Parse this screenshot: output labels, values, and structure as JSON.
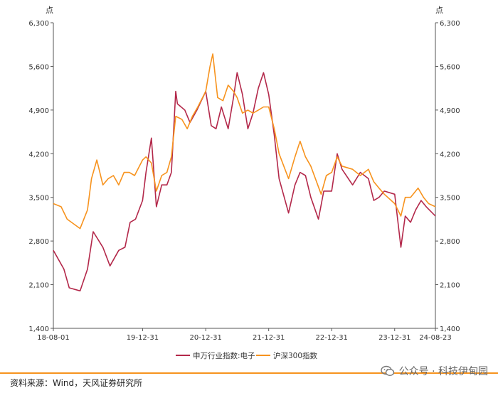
{
  "chart_data": {
    "type": "line",
    "unit_left": "点",
    "unit_right": "点",
    "ylim": [
      1400,
      6300
    ],
    "yticks": [
      "1,400",
      "2,100",
      "2,800",
      "3,500",
      "4,200",
      "4,900",
      "5,600",
      "6,300"
    ],
    "xticks": [
      "18-08-01",
      "19-12-31",
      "20-12-31",
      "21-12-31",
      "22-12-31",
      "23-12-31",
      "24-08-23"
    ],
    "legend_position": "bottom",
    "grid": false,
    "series": [
      {
        "name": "申万行业指数:电子",
        "color": "#b3284a",
        "points": [
          [
            "18-08-01",
            2650
          ],
          [
            "18-10-01",
            2350
          ],
          [
            "18-11-01",
            2050
          ],
          [
            "19-01-03",
            2000
          ],
          [
            "19-02-15",
            2350
          ],
          [
            "19-03-20",
            2950
          ],
          [
            "19-05-15",
            2700
          ],
          [
            "19-06-25",
            2400
          ],
          [
            "19-08-15",
            2650
          ],
          [
            "19-09-20",
            2700
          ],
          [
            "19-10-20",
            3100
          ],
          [
            "19-11-20",
            3150
          ],
          [
            "19-12-31",
            3450
          ],
          [
            "20-01-20",
            3900
          ],
          [
            "20-02-20",
            4450
          ],
          [
            "20-03-20",
            3350
          ],
          [
            "20-04-20",
            3700
          ],
          [
            "20-05-20",
            3700
          ],
          [
            "20-06-15",
            3900
          ],
          [
            "20-07-10",
            5200
          ],
          [
            "20-07-20",
            5000
          ],
          [
            "20-09-01",
            4900
          ],
          [
            "20-10-01",
            4700
          ],
          [
            "20-11-10",
            4900
          ],
          [
            "20-12-31",
            5200
          ],
          [
            "21-02-01",
            4650
          ],
          [
            "21-03-01",
            4600
          ],
          [
            "21-04-01",
            4950
          ],
          [
            "21-05-10",
            4600
          ],
          [
            "21-06-10",
            5100
          ],
          [
            "21-07-01",
            5500
          ],
          [
            "21-08-01",
            5150
          ],
          [
            "21-09-01",
            4600
          ],
          [
            "21-10-01",
            4850
          ],
          [
            "21-11-01",
            5250
          ],
          [
            "21-12-01",
            5500
          ],
          [
            "21-12-31",
            5150
          ],
          [
            "22-02-01",
            4500
          ],
          [
            "22-03-01",
            3800
          ],
          [
            "22-04-25",
            3250
          ],
          [
            "22-06-01",
            3700
          ],
          [
            "22-07-01",
            3900
          ],
          [
            "22-08-01",
            3850
          ],
          [
            "22-09-01",
            3500
          ],
          [
            "22-10-15",
            3150
          ],
          [
            "22-11-15",
            3600
          ],
          [
            "22-12-31",
            3600
          ],
          [
            "23-02-01",
            4200
          ],
          [
            "23-03-01",
            3950
          ],
          [
            "23-05-01",
            3700
          ],
          [
            "23-06-15",
            3900
          ],
          [
            "23-08-01",
            3800
          ],
          [
            "23-09-01",
            3450
          ],
          [
            "23-10-01",
            3500
          ],
          [
            "23-11-01",
            3600
          ],
          [
            "23-12-31",
            3550
          ],
          [
            "24-02-05",
            2700
          ],
          [
            "24-03-01",
            3200
          ],
          [
            "24-04-01",
            3100
          ],
          [
            "24-05-01",
            3300
          ],
          [
            "24-06-01",
            3450
          ],
          [
            "24-07-01",
            3350
          ],
          [
            "24-08-23",
            3200
          ]
        ]
      },
      {
        "name": "沪深300指数",
        "color": "#f7931e",
        "points": [
          [
            "18-08-01",
            3400
          ],
          [
            "18-09-15",
            3350
          ],
          [
            "18-10-20",
            3150
          ],
          [
            "19-01-03",
            3000
          ],
          [
            "19-02-15",
            3300
          ],
          [
            "19-03-10",
            3800
          ],
          [
            "19-04-10",
            4100
          ],
          [
            "19-05-15",
            3700
          ],
          [
            "19-06-15",
            3800
          ],
          [
            "19-07-15",
            3850
          ],
          [
            "19-08-15",
            3700
          ],
          [
            "19-09-15",
            3900
          ],
          [
            "19-10-15",
            3900
          ],
          [
            "19-11-15",
            3850
          ],
          [
            "19-12-31",
            4100
          ],
          [
            "20-01-20",
            4150
          ],
          [
            "20-02-20",
            4050
          ],
          [
            "20-03-20",
            3600
          ],
          [
            "20-04-20",
            3850
          ],
          [
            "20-05-20",
            3900
          ],
          [
            "20-06-15",
            4150
          ],
          [
            "20-07-10",
            4800
          ],
          [
            "20-08-15",
            4750
          ],
          [
            "20-09-15",
            4600
          ],
          [
            "20-10-15",
            4800
          ],
          [
            "20-11-15",
            4950
          ],
          [
            "20-12-31",
            5200
          ],
          [
            "21-01-25",
            5600
          ],
          [
            "21-02-10",
            5800
          ],
          [
            "21-03-10",
            5100
          ],
          [
            "21-04-10",
            5050
          ],
          [
            "21-05-10",
            5300
          ],
          [
            "21-06-10",
            5200
          ],
          [
            "21-07-01",
            5100
          ],
          [
            "21-08-01",
            4850
          ],
          [
            "21-09-01",
            4900
          ],
          [
            "21-10-01",
            4850
          ],
          [
            "21-11-01",
            4900
          ],
          [
            "21-12-01",
            4950
          ],
          [
            "21-12-31",
            4950
          ],
          [
            "22-02-01",
            4600
          ],
          [
            "22-03-01",
            4200
          ],
          [
            "22-04-25",
            3800
          ],
          [
            "22-06-01",
            4150
          ],
          [
            "22-07-01",
            4400
          ],
          [
            "22-08-01",
            4150
          ],
          [
            "22-09-01",
            4000
          ],
          [
            "22-10-31",
            3550
          ],
          [
            "22-11-30",
            3850
          ],
          [
            "22-12-31",
            3900
          ],
          [
            "23-02-01",
            4150
          ],
          [
            "23-03-01",
            4000
          ],
          [
            "23-05-01",
            3950
          ],
          [
            "23-06-15",
            3850
          ],
          [
            "23-08-01",
            3950
          ],
          [
            "23-09-01",
            3750
          ],
          [
            "23-10-01",
            3650
          ],
          [
            "23-11-01",
            3550
          ],
          [
            "23-12-31",
            3400
          ],
          [
            "24-02-05",
            3200
          ],
          [
            "24-03-01",
            3500
          ],
          [
            "24-04-01",
            3500
          ],
          [
            "24-05-15",
            3650
          ],
          [
            "24-06-15",
            3500
          ],
          [
            "24-07-15",
            3400
          ],
          [
            "24-08-23",
            3350
          ]
        ]
      }
    ]
  },
  "footer": {
    "source": "资料来源：Wind，天风证券研究所",
    "watermark": "公众号 · 科技伊甸园"
  },
  "colors": {
    "footer_line": "#f7931e",
    "axis": "#555555"
  }
}
